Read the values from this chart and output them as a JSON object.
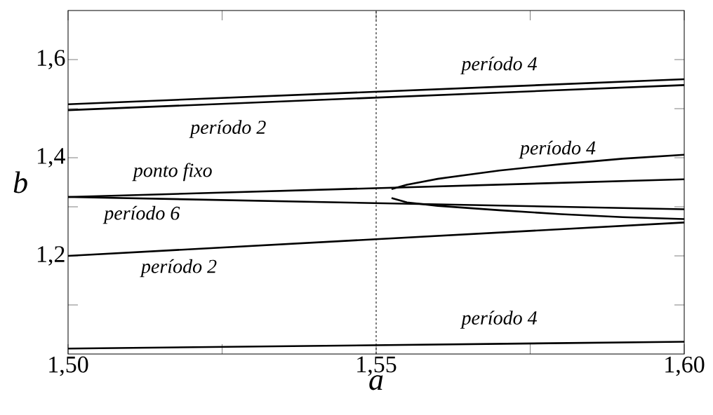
{
  "chart_data": {
    "type": "line",
    "xlabel": "a",
    "ylabel": "b",
    "xlim": [
      1.5,
      1.6
    ],
    "ylim": [
      1.0,
      1.7
    ],
    "xticks": [
      {
        "value": 1.5,
        "label": "1,50"
      },
      {
        "value": 1.525,
        "label": null
      },
      {
        "value": 1.55,
        "label": "1,55"
      },
      {
        "value": 1.575,
        "label": null
      },
      {
        "value": 1.6,
        "label": "1,60"
      }
    ],
    "yticks": [
      {
        "value": 1.1,
        "label": null
      },
      {
        "value": 1.2,
        "label": "1,2"
      },
      {
        "value": 1.3,
        "label": null
      },
      {
        "value": 1.4,
        "label": "1,4"
      },
      {
        "value": 1.5,
        "label": null
      },
      {
        "value": 1.6,
        "label": "1,6"
      }
    ],
    "series": [
      {
        "color": "#000000",
        "x": [
          1.5,
          1.6
        ],
        "values": [
          1.509,
          1.56
        ]
      },
      {
        "color": "#000000",
        "x": [
          1.5,
          1.6
        ],
        "values": [
          1.497,
          1.548
        ]
      },
      {
        "color": "#000000",
        "x": [
          1.5,
          1.6
        ],
        "values": [
          1.32,
          1.356
        ]
      },
      {
        "color": "#000000",
        "x": [
          1.5,
          1.6
        ],
        "values": [
          1.32,
          1.295
        ]
      },
      {
        "color": "#000000",
        "x": [
          1.5,
          1.6
        ],
        "values": [
          1.2,
          1.268
        ]
      },
      {
        "color": "#000000",
        "x": [
          1.5,
          1.6
        ],
        "values": [
          1.011,
          1.025
        ]
      },
      {
        "color": "#000000",
        "x": [
          1.5525,
          1.555,
          1.56,
          1.57,
          1.58,
          1.59,
          1.6
        ],
        "values": [
          1.336,
          1.345,
          1.357,
          1.374,
          1.387,
          1.398,
          1.406
        ]
      },
      {
        "color": "#000000",
        "x": [
          1.5525,
          1.555,
          1.56,
          1.57,
          1.58,
          1.59,
          1.6
        ],
        "values": [
          1.318,
          1.309,
          1.302,
          1.293,
          1.285,
          1.279,
          1.275
        ]
      }
    ],
    "ref_lines": [
      {
        "axis": "x",
        "value": 1.55,
        "line_style": "dashed",
        "color": "#000000"
      }
    ],
    "annotations": [
      "período 4",
      "período 2",
      "período 4",
      "ponto fixo",
      "período 6",
      "período 2",
      "período 4"
    ]
  }
}
